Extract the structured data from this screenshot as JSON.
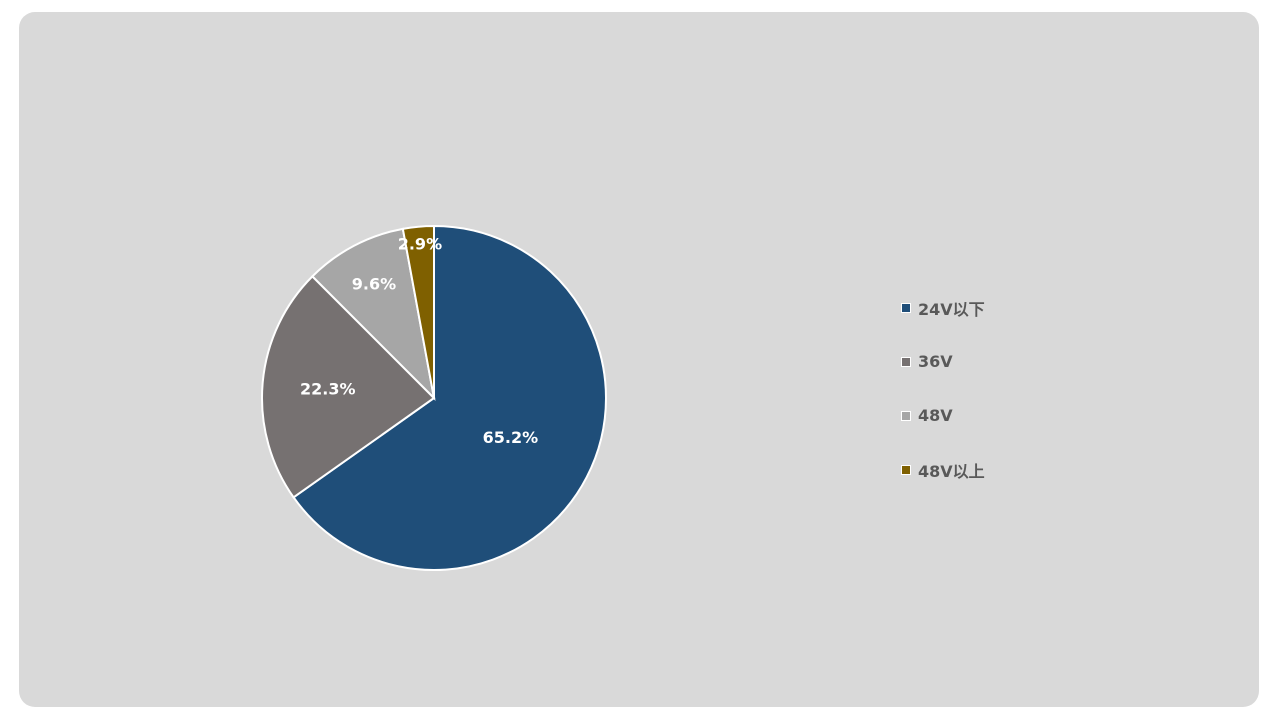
{
  "chart_data": {
    "type": "pie",
    "categories": [
      "24V以下",
      "36V",
      "48V",
      "48V以上"
    ],
    "values": [
      65.2,
      22.3,
      9.6,
      2.9
    ],
    "value_labels": [
      "65.2%",
      "22.3%",
      "9.6%",
      "2.9%"
    ],
    "colors": [
      "#1f4e79",
      "#767171",
      "#a6a6a6",
      "#7f6000"
    ],
    "start_angle": "12 o'clock",
    "direction": "clockwise",
    "legend_position": "right"
  }
}
